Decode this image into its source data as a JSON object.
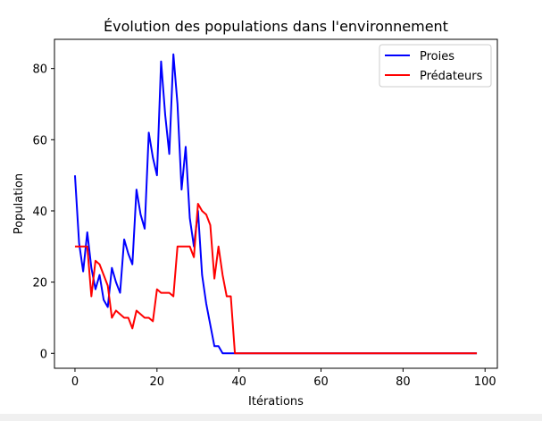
{
  "chart_data": {
    "type": "line",
    "title": "Évolution des populations dans l'environnement",
    "xlabel": "Itérations",
    "ylabel": "Population",
    "xlim": [
      -5,
      103
    ],
    "ylim": [
      -4.2,
      88.2
    ],
    "xticks": [
      0,
      20,
      40,
      60,
      80,
      100
    ],
    "yticks": [
      0,
      20,
      40,
      60,
      80
    ],
    "xtick_labels": [
      "0",
      "20",
      "40",
      "60",
      "80",
      "100"
    ],
    "ytick_labels": [
      "0",
      "20",
      "40",
      "60",
      "80"
    ],
    "grid": false,
    "legend_position": "top-right",
    "series": [
      {
        "name": "Proies",
        "color": "#0000ff",
        "x": [
          0,
          1,
          2,
          3,
          4,
          5,
          6,
          7,
          8,
          9,
          10,
          11,
          12,
          13,
          14,
          15,
          16,
          17,
          18,
          19,
          20,
          21,
          22,
          23,
          24,
          25,
          26,
          27,
          28,
          29,
          30,
          31,
          32,
          33,
          34,
          35,
          36,
          37,
          38,
          39,
          40,
          45,
          50,
          55,
          60,
          65,
          70,
          75,
          80,
          85,
          90,
          95,
          98
        ],
        "values": [
          50,
          31,
          23,
          34,
          24,
          18,
          22,
          15,
          13,
          24,
          20,
          17,
          32,
          28,
          25,
          46,
          39,
          35,
          62,
          55,
          50,
          82,
          67,
          56,
          84,
          70,
          46,
          58,
          38,
          30,
          40,
          22,
          14,
          8,
          2,
          2,
          0,
          0,
          0,
          0,
          0,
          0,
          0,
          0,
          0,
          0,
          0,
          0,
          0,
          0,
          0,
          0,
          0
        ]
      },
      {
        "name": "Prédateurs",
        "color": "#ff0000",
        "x": [
          0,
          1,
          2,
          3,
          4,
          5,
          6,
          7,
          8,
          9,
          10,
          11,
          12,
          13,
          14,
          15,
          16,
          17,
          18,
          19,
          20,
          21,
          22,
          23,
          24,
          25,
          26,
          27,
          28,
          29,
          30,
          31,
          32,
          33,
          34,
          35,
          36,
          37,
          38,
          39,
          40,
          45,
          50,
          55,
          60,
          65,
          70,
          75,
          80,
          85,
          90,
          95,
          98
        ],
        "values": [
          30,
          30,
          30,
          30,
          16,
          26,
          25,
          22,
          19,
          10,
          12,
          11,
          10,
          10,
          7,
          12,
          11,
          10,
          10,
          9,
          18,
          17,
          17,
          17,
          16,
          30,
          30,
          30,
          30,
          27,
          42,
          40,
          39,
          36,
          21,
          30,
          22,
          16,
          16,
          0,
          0,
          0,
          0,
          0,
          0,
          0,
          0,
          0,
          0,
          0,
          0,
          0,
          0
        ]
      }
    ]
  }
}
